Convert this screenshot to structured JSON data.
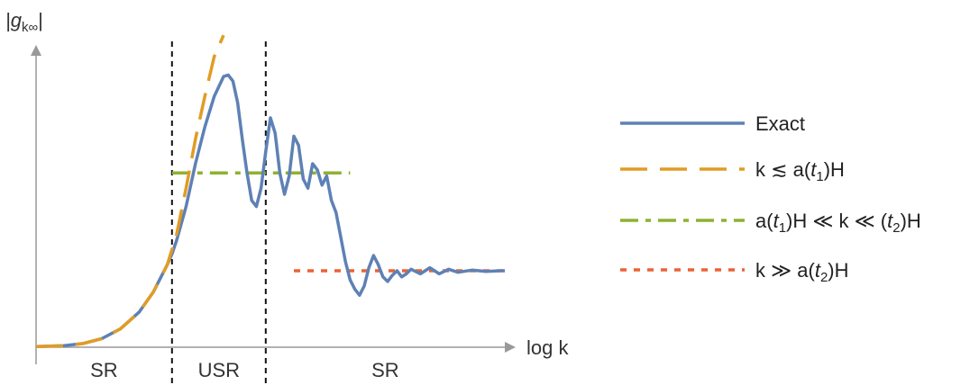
{
  "chart_data": {
    "type": "line",
    "title": "",
    "xlabel": "log k",
    "ylabel": "|g",
    "ylabel_sub": "k∞",
    "ylabel_close": "|",
    "xlim": [
      0,
      100
    ],
    "ylim": [
      0,
      100
    ],
    "grid": false,
    "legend_position": "right",
    "regions": [
      {
        "label": "SR",
        "x_start": 0,
        "x_end": 29
      },
      {
        "label": "USR",
        "x_start": 29,
        "x_end": 49
      },
      {
        "label": "SR",
        "x_start": 49,
        "x_end": 100
      }
    ],
    "vlines": [
      29,
      49
    ],
    "series": [
      {
        "name": "Exact",
        "color": "#5e81b5",
        "style": "solid",
        "x": [
          0,
          6,
          10,
          14,
          18,
          22,
          25,
          28,
          29,
          30,
          32,
          34,
          36,
          38,
          40,
          41,
          42,
          43,
          44,
          45,
          46,
          47,
          48,
          49,
          50,
          51,
          52,
          53,
          54,
          55,
          56,
          57,
          58,
          59,
          60,
          61,
          62,
          63,
          64,
          65,
          66,
          67,
          68,
          69,
          70,
          71,
          72,
          73,
          74,
          75,
          76,
          77,
          78,
          79,
          80,
          82,
          84,
          86,
          88,
          90,
          93,
          96,
          99,
          100
        ],
        "y": [
          0.2,
          0.5,
          1.2,
          2.8,
          6.0,
          11.5,
          18.0,
          27.0,
          30.5,
          35.0,
          46.0,
          60.0,
          72.0,
          82.0,
          88.5,
          89.0,
          87.0,
          80.0,
          68.0,
          57.0,
          48.0,
          46.0,
          52.0,
          64.0,
          75.0,
          70.0,
          57.0,
          50.0,
          56.0,
          69.0,
          66.0,
          55.0,
          52.0,
          60.0,
          58.0,
          53.0,
          56.0,
          48.0,
          44.0,
          36.0,
          28.0,
          22.0,
          19.0,
          17.0,
          20.0,
          26.0,
          30.0,
          27.0,
          23.0,
          21.5,
          23.5,
          25.0,
          23.0,
          24.0,
          25.5,
          24.0,
          26.0,
          24.0,
          25.5,
          24.5,
          25.2,
          24.8,
          25.0,
          25.0
        ]
      },
      {
        "name": "k ≲ a(t₁)H",
        "color": "#e19c24",
        "style": "dashed",
        "x": [
          0,
          6,
          10,
          14,
          18,
          22,
          25,
          28,
          30,
          32,
          34,
          36,
          38,
          40
        ],
        "y": [
          0.2,
          0.5,
          1.2,
          2.8,
          6.0,
          11.5,
          18.0,
          27.0,
          37.0,
          52.0,
          68.0,
          82.0,
          95.0,
          102.0
        ]
      },
      {
        "name": "a(t₁)H ≪ k ≪ (t₂)H",
        "color": "#8fb131",
        "style": "dashdot",
        "x": [
          29,
          67
        ],
        "y": [
          57.0,
          57.0
        ]
      },
      {
        "name": "k ≫ a(t₂)H",
        "color": "#eb6235",
        "style": "dotted",
        "x": [
          55,
          100
        ],
        "y": [
          25.0,
          25.0
        ]
      }
    ],
    "legend": [
      {
        "pre": "Exact",
        "ital": "",
        "sub": "",
        "post": ""
      },
      {
        "pre": "k ≲ a(",
        "ital": "t",
        "sub": "1",
        "post": ")H"
      },
      {
        "pre": "a(",
        "ital": "t",
        "sub": "1",
        "post": ")H ≪ k ≪ (",
        "ital2": "t",
        "sub2": "2",
        "post2": ")H"
      },
      {
        "pre": "k ≫ a(",
        "ital": "t",
        "sub": "2",
        "post": ")H"
      }
    ]
  }
}
